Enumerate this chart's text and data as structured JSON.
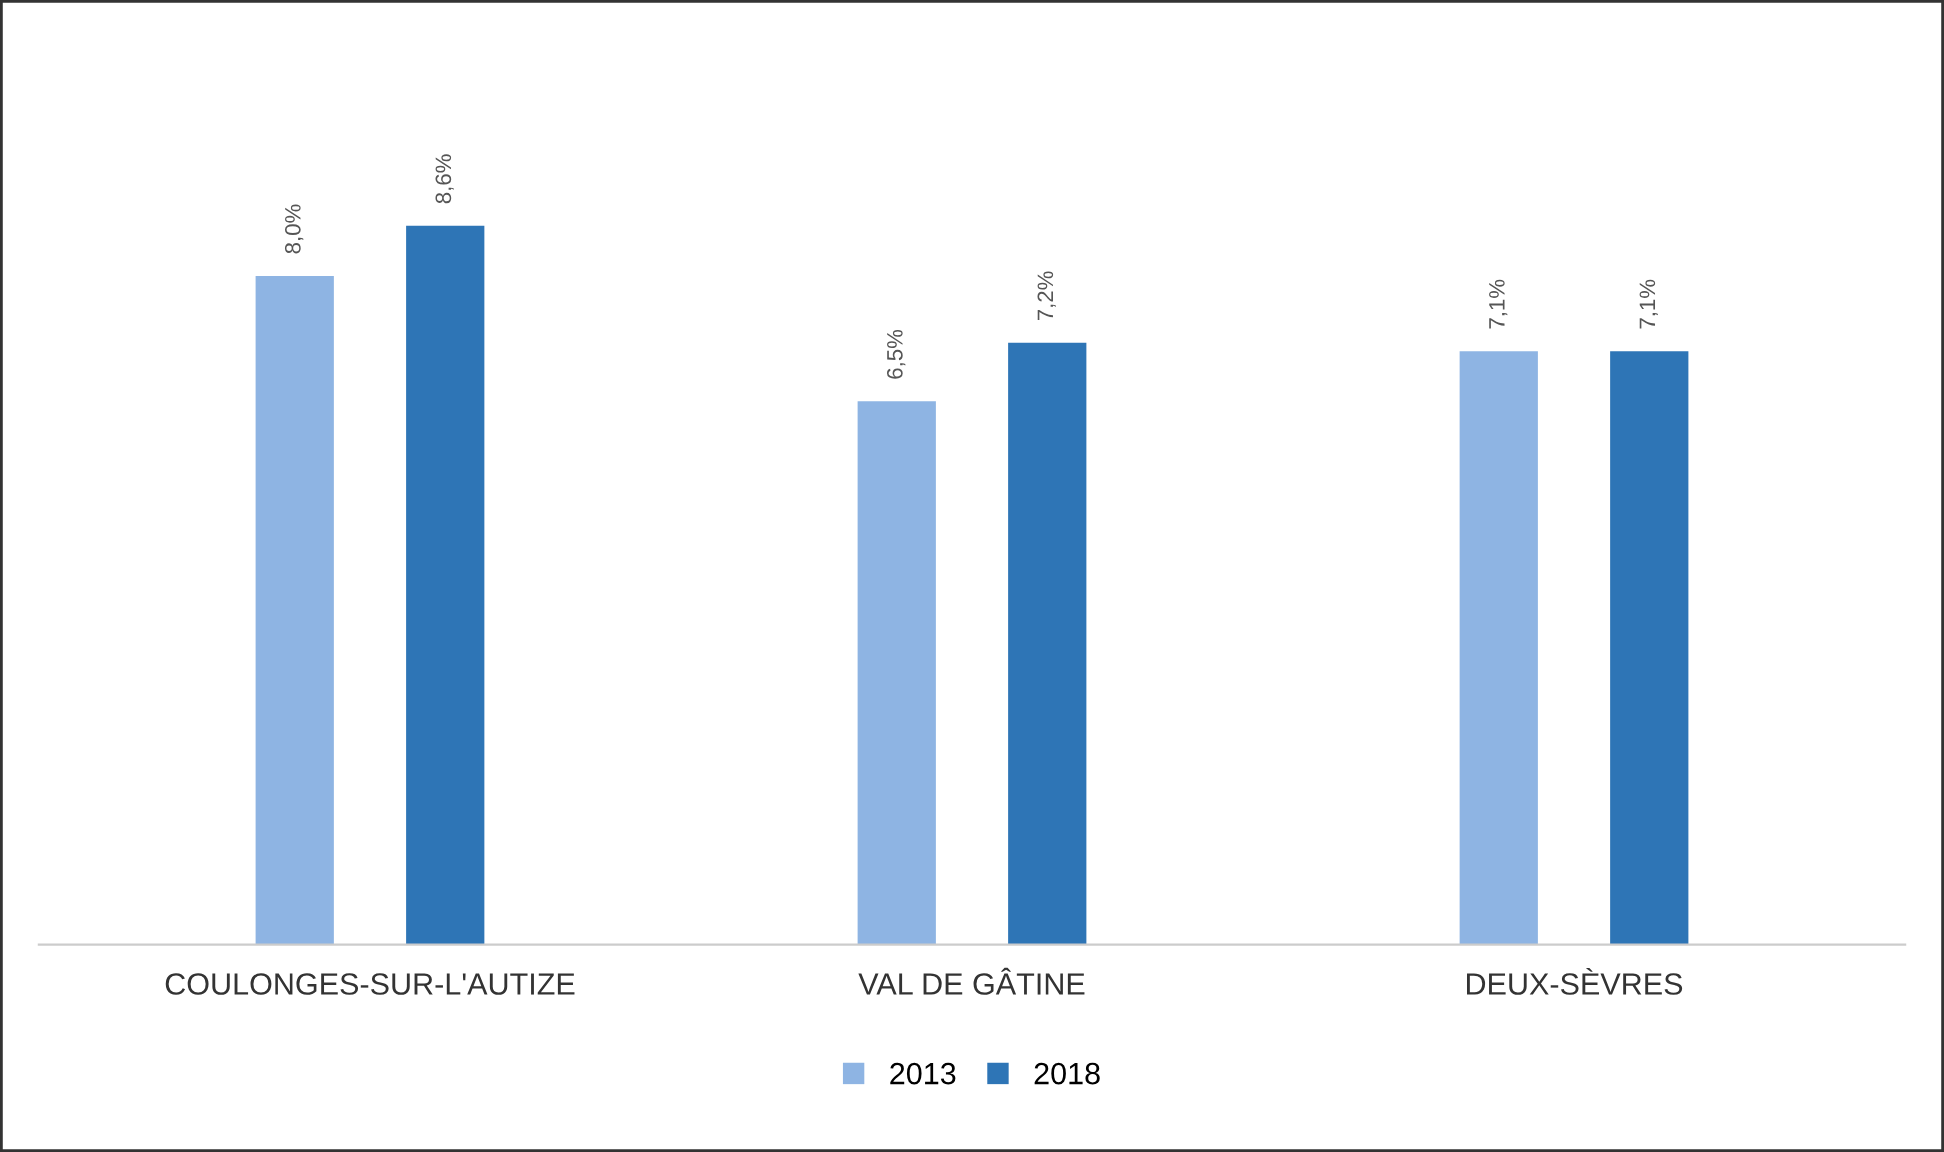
{
  "chart_data": {
    "type": "bar",
    "categories": [
      "COULONGES-SUR-L'AUTIZE",
      "VAL DE GÂTINE",
      "DEUX-SÈVRES"
    ],
    "series": [
      {
        "name": "2013",
        "color": "#8eb4e3",
        "values": [
          8.0,
          6.5,
          7.1
        ],
        "value_labels": [
          "8,0%",
          "6,5%",
          "7,1%"
        ]
      },
      {
        "name": "2018",
        "color": "#2e75b6",
        "values": [
          8.6,
          7.2,
          7.1
        ],
        "value_labels": [
          "8,6%",
          "7,2%",
          "7,1%"
        ]
      }
    ],
    "legend": "bottom"
  }
}
